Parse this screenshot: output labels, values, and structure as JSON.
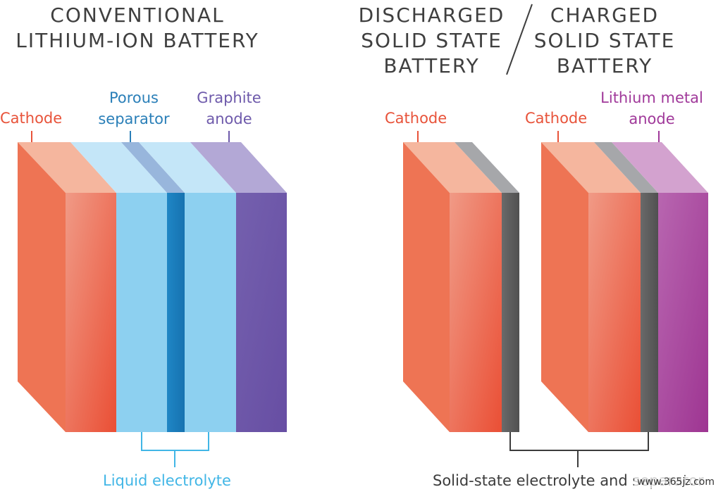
{
  "titles": {
    "conventional": [
      "CONVENTIONAL",
      "LITHIUM-ION BATTERY"
    ],
    "discharged": [
      "DISCHARGED",
      "SOLID STATE",
      "BATTERY"
    ],
    "charged": [
      "CHARGED",
      "SOLID STATE",
      "BATTERY"
    ]
  },
  "labels": {
    "cathode_conventional": "Cathode",
    "porous_separator": [
      "Porous",
      "separator"
    ],
    "graphite_anode": [
      "Graphite",
      "anode"
    ],
    "cathode_discharged": "Cathode",
    "cathode_charged": "Cathode",
    "lithium_metal_anode": [
      "Lithium metal",
      "anode"
    ],
    "liquid_electrolyte": "Liquid electrolyte",
    "solid_state_electrolyte": "Solid-state electrolyte and separator"
  },
  "watermark": "www.365jz.com",
  "colors": {
    "cathode": "#ee6f4e",
    "electrolyte": "#8dd0f0",
    "separator": "#1b7fbf",
    "graphite": "#6d55a8",
    "solid_electrolyte": "#5a5a5a",
    "lithium_metal": "#a33d98"
  }
}
